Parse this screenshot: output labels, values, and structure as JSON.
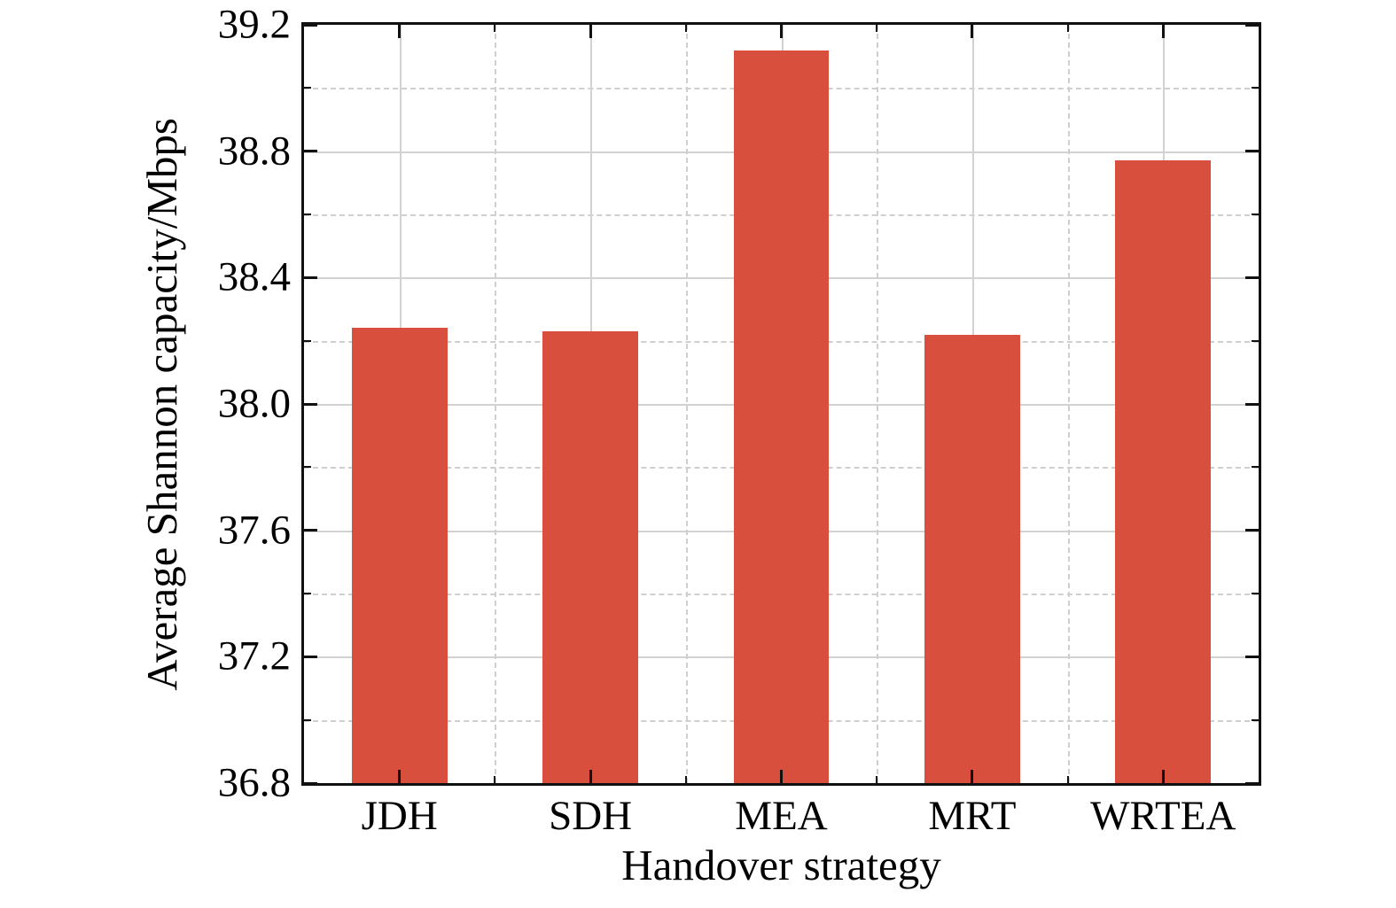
{
  "chart_data": {
    "type": "bar",
    "title": "",
    "xlabel": "Handover strategy",
    "ylabel": "Average Shannon capacity/Mbps",
    "categories": [
      "JDH",
      "SDH",
      "MEA",
      "MRT",
      "WRTEA"
    ],
    "values": [
      38.24,
      38.23,
      39.12,
      38.22,
      38.77
    ],
    "ylim": [
      36.8,
      39.2
    ],
    "ytick_labels": [
      "36.8",
      "37.2",
      "37.6",
      "38.0",
      "38.4",
      "38.8",
      "39.2"
    ],
    "yticks_minor": [
      37.0,
      37.4,
      37.8,
      38.2,
      38.6,
      39.0
    ],
    "bar_color": "#d8503d",
    "grid": "major solid, minor dashed, horizontal and vertical",
    "legend_position": "none"
  }
}
